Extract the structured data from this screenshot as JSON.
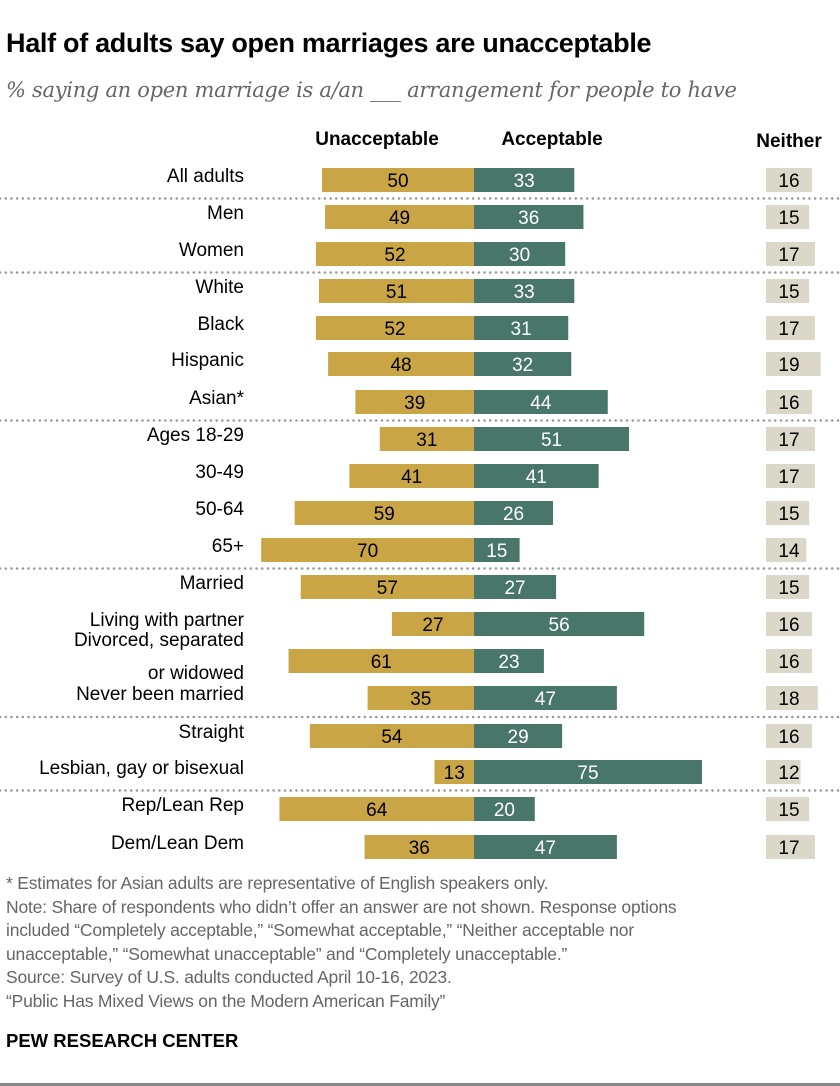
{
  "title": "Half of adults say open marriages are unacceptable",
  "subtitle": "% saying an open marriage is a/an ___ arrangement for people to have",
  "chart_data": {
    "type": "bar",
    "orientation": "horizontal-diverging",
    "columns": [
      "Unacceptable",
      "Acceptable",
      "Neither"
    ],
    "colors": {
      "Unacceptable": "#c9a546",
      "Acceptable": "#48766a",
      "Neither": "#dbd8c9"
    },
    "groups": [
      [
        "All adults"
      ],
      [
        "Men",
        "Women"
      ],
      [
        "White",
        "Black",
        "Hispanic",
        "Asian*"
      ],
      [
        "Ages 18-29",
        "30-49",
        "50-64",
        "65+"
      ],
      [
        "Married",
        "Living with partner",
        "Divorced, separated or widowed",
        "Never been married"
      ],
      [
        "Straight",
        "Lesbian, gay or bisexual"
      ],
      [
        "Rep/Lean Rep",
        "Dem/Lean Dem"
      ]
    ],
    "categories": [
      "All adults",
      "Men",
      "Women",
      "White",
      "Black",
      "Hispanic",
      "Asian*",
      "Ages 18-29",
      "30-49",
      "50-64",
      "65+",
      "Married",
      "Living with partner",
      "Divorced, separated or widowed",
      "Never been married",
      "Straight",
      "Lesbian, gay or bisexual",
      "Rep/Lean Rep",
      "Dem/Lean Dem"
    ],
    "series": [
      {
        "name": "Unacceptable",
        "values": [
          50,
          49,
          52,
          51,
          52,
          48,
          39,
          31,
          41,
          59,
          70,
          57,
          27,
          61,
          35,
          54,
          13,
          64,
          36
        ]
      },
      {
        "name": "Acceptable",
        "values": [
          33,
          36,
          30,
          33,
          31,
          32,
          44,
          51,
          41,
          26,
          15,
          27,
          56,
          23,
          47,
          29,
          75,
          20,
          47
        ]
      },
      {
        "name": "Neither",
        "values": [
          16,
          15,
          17,
          15,
          17,
          19,
          16,
          17,
          17,
          15,
          14,
          15,
          16,
          16,
          18,
          16,
          12,
          15,
          17
        ]
      }
    ]
  },
  "notes": [
    "* Estimates for Asian adults are representative of English speakers only.",
    "Note: Share of respondents who didn’t offer an answer are not shown. Response options",
    "included “Completely acceptable,” “Somewhat acceptable,” “Neither acceptable nor",
    "unacceptable,” “Somewhat unacceptable” and “Completely unacceptable.”",
    "Source: Survey of U.S. adults conducted April 10-16, 2023.",
    "“Public Has Mixed Views on the Modern American Family”"
  ],
  "brand": "PEW RESEARCH CENTER"
}
